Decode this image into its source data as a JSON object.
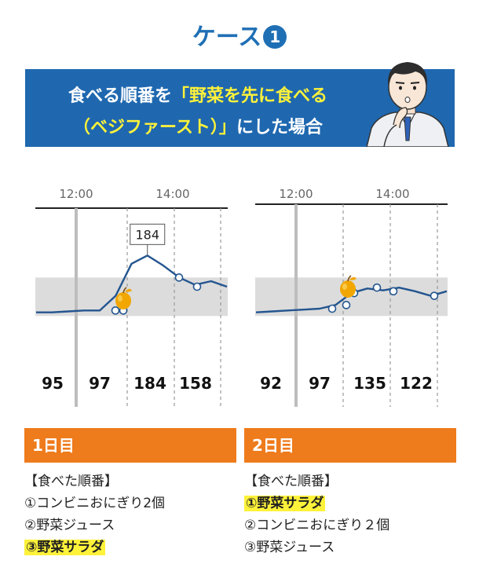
{
  "case_title": "ケース",
  "case_number": "1",
  "banner": {
    "line1_prefix": "食べる順番を",
    "line1_highlight": "「野菜を先に食べる",
    "line2_highlight": "（ベジファースト）」",
    "line2_suffix": "にした場合"
  },
  "colors": {
    "accent_blue": "#1f6fb5",
    "banner_blue": "#1f68b0",
    "orange": "#ee7b1c",
    "highlight": "#fff23a",
    "line": "#23558f",
    "band": "#dcdcdc"
  },
  "icons": [
    "apple-icon",
    "thinking-man-illustration"
  ],
  "chart_data": [
    {
      "type": "line",
      "time_labels": [
        "12:00",
        "14:00"
      ],
      "readings": [
        "95",
        "97",
        "184",
        "158"
      ],
      "annotation": "184",
      "series": [
        {
          "values": [
            122,
            122,
            123,
            124,
            124,
            140,
            175,
            184,
            173,
            160,
            152,
            156,
            150
          ]
        }
      ],
      "markers": [
        124,
        124,
        160,
        150
      ],
      "meal_marker": "apple-icon",
      "target_band": [
        118,
        160
      ],
      "ylim": [
        60,
        240
      ]
    },
    {
      "type": "line",
      "time_labels": [
        "12:00",
        "14:00"
      ],
      "readings": [
        "92",
        "97",
        "135",
        "122"
      ],
      "series": [
        {
          "values": [
            122,
            123,
            124,
            125,
            126,
            130,
            143,
            148,
            146,
            149,
            145,
            140,
            145
          ]
        }
      ],
      "markers": [
        126,
        130,
        143,
        149,
        145,
        140
      ],
      "meal_marker": "apple-icon",
      "target_band": [
        118,
        160
      ],
      "ylim": [
        60,
        240
      ]
    }
  ],
  "day1": {
    "header": "1日目",
    "order_title": "【食べた順番】",
    "items": [
      "①コンビニおにぎり2個",
      "②野菜ジュース",
      "③野菜サラダ"
    ]
  },
  "day2": {
    "header": "2日目",
    "order_title": "【食べた順番】",
    "items": [
      "①野菜サラダ",
      "②コンビニおにぎり２個",
      "③野菜ジュース"
    ]
  }
}
